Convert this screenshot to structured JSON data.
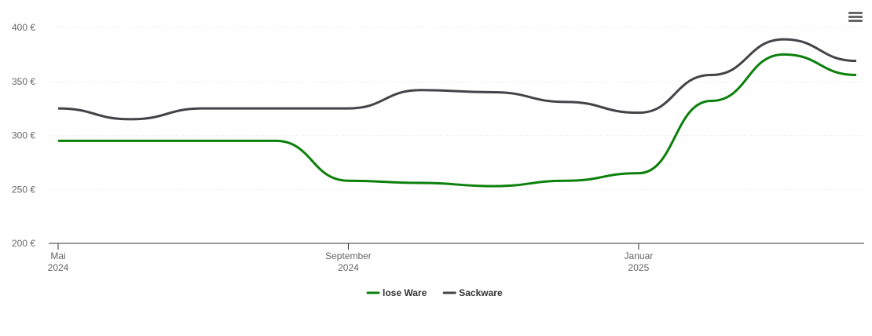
{
  "chart_data": {
    "type": "line",
    "x": [
      "2024-05",
      "2024-06",
      "2024-07",
      "2024-08",
      "2024-09",
      "2024-10",
      "2024-11",
      "2024-12",
      "2025-01",
      "2025-02",
      "2025-03",
      "2025-04"
    ],
    "series": [
      {
        "name": "lose Ware",
        "color": "#0b800b",
        "values": [
          295,
          295,
          295,
          295,
          258,
          256,
          253,
          258,
          265,
          332,
          375,
          356
        ]
      },
      {
        "name": "Sackware",
        "color": "#434348",
        "values": [
          325,
          315,
          325,
          325,
          325,
          342,
          340,
          331,
          321,
          356,
          389,
          369
        ]
      }
    ],
    "xlim": [
      "2024-05",
      "2025-04"
    ],
    "xticks": [
      {
        "value": "2024-05",
        "label": "Mai 2024"
      },
      {
        "value": "2024-09",
        "label": "September 2024"
      },
      {
        "value": "2025-01",
        "label": "Januar 2025"
      }
    ],
    "ylim": [
      200,
      400
    ],
    "yticks": [
      {
        "value": 200,
        "label": "200 €"
      },
      {
        "value": 250,
        "label": "250 €"
      },
      {
        "value": 300,
        "label": "300 €"
      },
      {
        "value": 350,
        "label": "350 €"
      },
      {
        "value": 400,
        "label": "400 €"
      }
    ],
    "grid": true
  }
}
